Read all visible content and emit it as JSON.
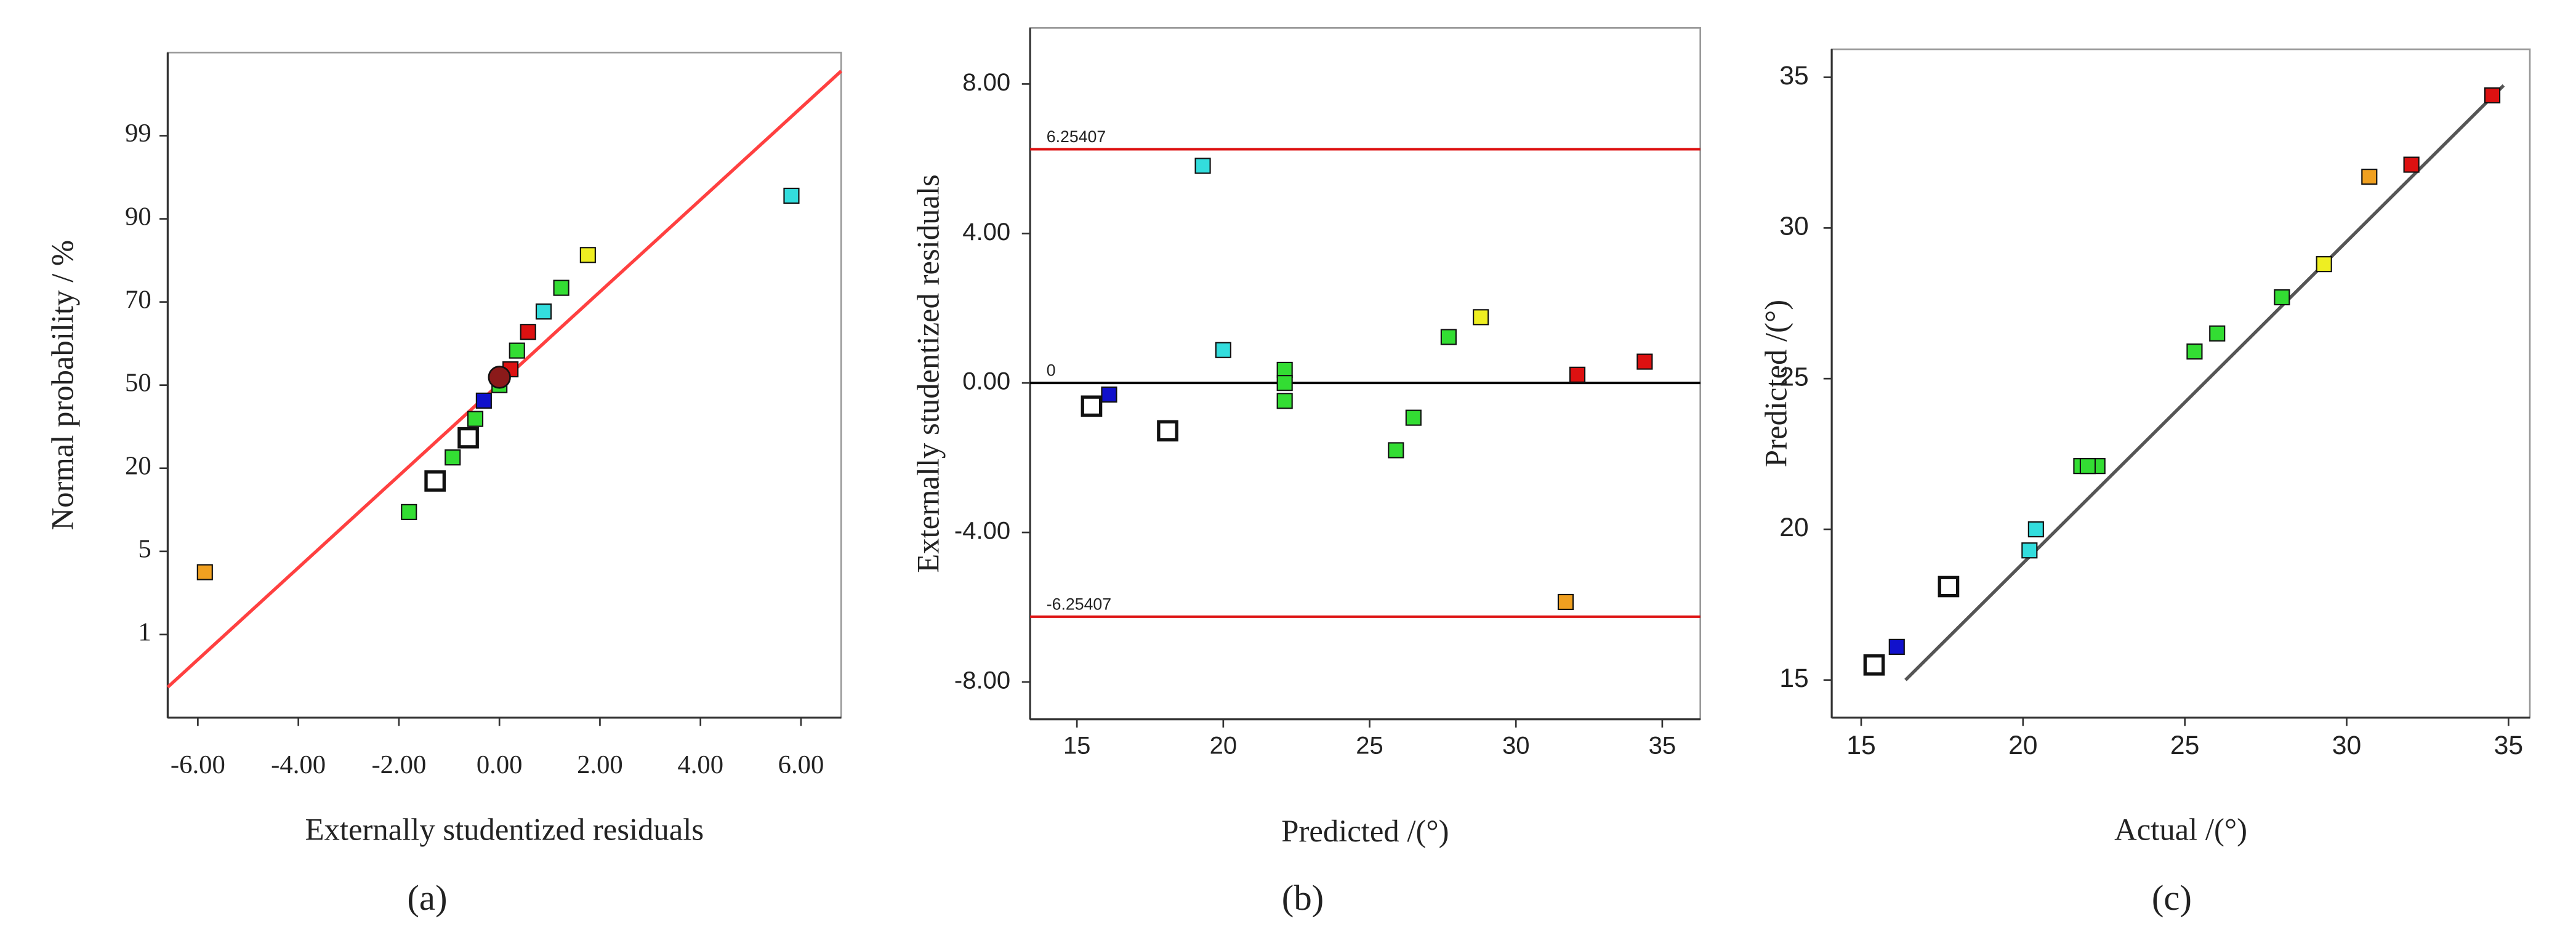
{
  "chart_data": [
    {
      "type": "scatter",
      "caption": "(a)",
      "xlabel": "Externally studentized residuals",
      "ylabel": "Normal probability / %",
      "xlim": [
        -6.6,
        6.8
      ],
      "ylim": [
        0.1,
        99.9
      ],
      "yscale": "probability",
      "xticks": [
        {
          "value": -6,
          "label": "-6.00"
        },
        {
          "value": -4,
          "label": "-4.00"
        },
        {
          "value": -2,
          "label": "-2.00"
        },
        {
          "value": 0,
          "label": "0.00"
        },
        {
          "value": 2,
          "label": "2.00"
        },
        {
          "value": 4,
          "label": "4.00"
        },
        {
          "value": 6,
          "label": "6.00"
        }
      ],
      "yticks": [
        1,
        5,
        20,
        50,
        70,
        90,
        99
      ],
      "x": [
        -5.86,
        -1.8,
        -1.28,
        -0.93,
        -0.62,
        -0.48,
        -0.31,
        0.0,
        0.22,
        0.35,
        0.57,
        0.88,
        1.23,
        1.76,
        5.81
      ],
      "y": [
        4.0,
        12.1,
        17.7,
        23.9,
        31,
        37.8,
        44.4,
        50,
        53.8,
        58.3,
        62.8,
        67.7,
        73.4,
        81.3,
        92.5
      ],
      "colors": [
        "#f0a020",
        "#33dd33",
        "#ffffff",
        "#33dd33",
        "#ffffff",
        "#33dd33",
        "#1111cc",
        "#33dd33",
        "#dd1111",
        "#33dd33",
        "#dd1111",
        "#33dddd",
        "#33dd33",
        "#eeee22",
        "#33dddd"
      ],
      "highlight": {
        "x": 0.0,
        "y": 51.9,
        "color": "#8b1a1a"
      },
      "fit": {
        "x": [
          -6.6,
          6.8
        ],
        "y": [
          0.43,
          99.7
        ],
        "color": "#ff4040"
      }
    },
    {
      "type": "scatter",
      "caption": "(b)",
      "xlabel": "Predicted /(°)",
      "ylabel": "Externally studentized residuals",
      "xlim": [
        13.4,
        36.3
      ],
      "ylim": [
        -9.0,
        9.5
      ],
      "xticks": [
        15,
        20,
        25,
        30,
        35
      ],
      "yticks": [
        {
          "value": -8,
          "label": "-8.00"
        },
        {
          "value": -4,
          "label": "-4.00"
        },
        {
          "value": 0,
          "label": "0.00"
        },
        {
          "value": 4,
          "label": "4.00"
        },
        {
          "value": 8,
          "label": "8.00"
        }
      ],
      "x": [
        15.5,
        16.1,
        18.1,
        19.3,
        20.0,
        22.1,
        22.1,
        22.1,
        25.9,
        26.5,
        27.7,
        28.8,
        31.7,
        32.1,
        34.4
      ],
      "y": [
        -0.62,
        -0.31,
        -1.28,
        5.81,
        0.88,
        0.35,
        0.0,
        -0.48,
        -1.8,
        -0.93,
        1.23,
        1.76,
        -5.86,
        0.22,
        0.57
      ],
      "colors": [
        "#ffffff",
        "#1111cc",
        "#ffffff",
        "#33dddd",
        "#33dddd",
        "#33dd33",
        "#33dd33",
        "#33dd33",
        "#33dd33",
        "#33dd33",
        "#33dd33",
        "#eeee22",
        "#f0a020",
        "#dd1111",
        "#dd1111"
      ],
      "hlines": [
        {
          "value": 6.25407,
          "color": "#dd1111"
        },
        {
          "value": 0,
          "color": "#000000"
        },
        {
          "value": -6.25407,
          "color": "#dd1111"
        }
      ]
    },
    {
      "type": "scatter",
      "caption": "(c)",
      "xlabel": "Actual  /(°)",
      "ylabel": "Predicted /(°)",
      "xlim": [
        14.09,
        35.66
      ],
      "ylim": [
        13.75,
        35.93
      ],
      "xticks": [
        15,
        20,
        25,
        30,
        35
      ],
      "yticks": [
        15,
        20,
        25,
        30,
        35
      ],
      "x": [
        15.4,
        16.1,
        17.7,
        20.2,
        20.4,
        21.8,
        22.3,
        22.0,
        25.3,
        26.0,
        28.0,
        29.3,
        30.7,
        32.0,
        34.5
      ],
      "y": [
        15.5,
        16.1,
        18.1,
        19.3,
        20.0,
        22.1,
        22.1,
        22.1,
        25.9,
        26.5,
        27.7,
        28.8,
        31.7,
        32.1,
        34.4
      ],
      "colors": [
        "#ffffff",
        "#1111cc",
        "#ffffff",
        "#33dddd",
        "#33dddd",
        "#33dd33",
        "#33dd33",
        "#33dd33",
        "#33dd33",
        "#33dd33",
        "#33dd33",
        "#eeee22",
        "#f0a020",
        "#dd1111",
        "#dd1111"
      ],
      "fit": {
        "x": [
          16.37,
          34.85
        ],
        "y": [
          15,
          34.73
        ],
        "color": "#555555"
      }
    }
  ]
}
